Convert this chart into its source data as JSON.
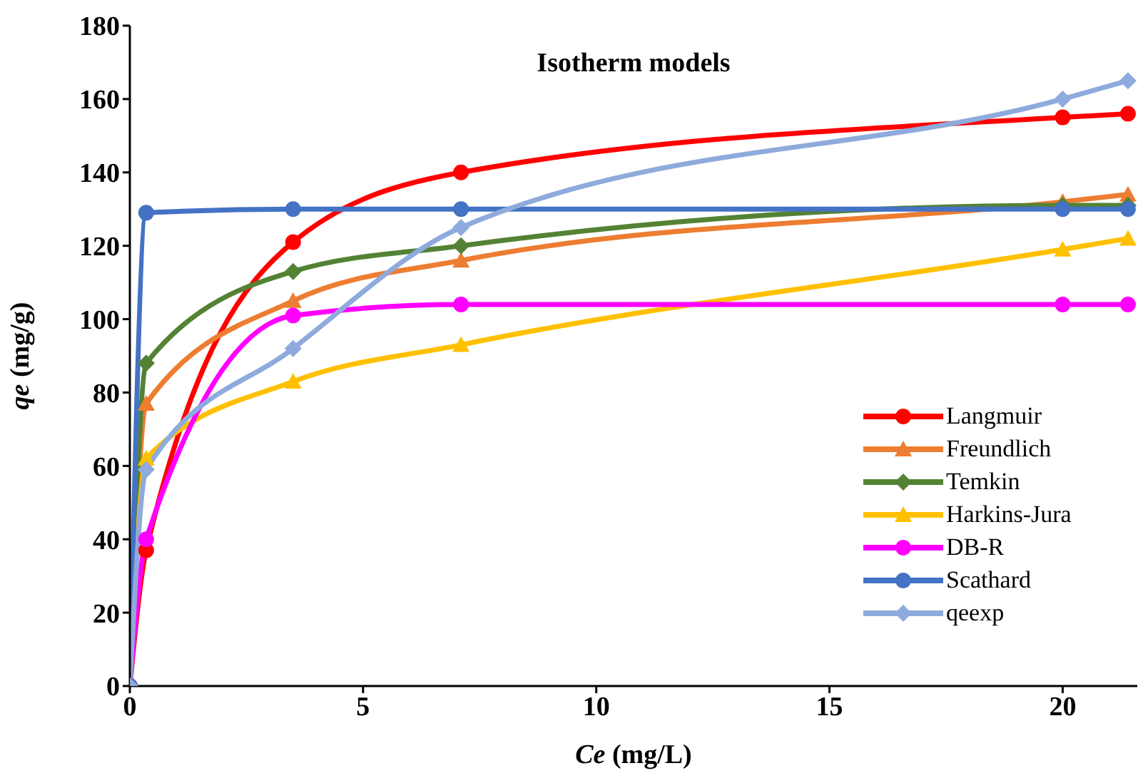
{
  "chart_data": {
    "type": "line",
    "title": "Isotherm models",
    "xlabel": "Ce (mg/L)",
    "ylabel": "qe (mg/g)",
    "x": [
      0,
      0.35,
      3.5,
      7.1,
      20,
      21.4
    ],
    "xlim": [
      0,
      21.6
    ],
    "xticks": [
      0,
      5,
      10,
      15,
      20
    ],
    "ylim": [
      0,
      180
    ],
    "yticks": [
      0,
      20,
      40,
      60,
      80,
      100,
      120,
      140,
      160,
      180
    ],
    "grid": false,
    "legend": "bottom right",
    "line_style": "solid",
    "series": [
      {
        "name": "Langmuir",
        "color": "#ff0000",
        "marker": "circle",
        "values": [
          0,
          37,
          121,
          140,
          155,
          156
        ]
      },
      {
        "name": "Freundlich",
        "color": "#ed7d31",
        "marker": "triangle",
        "values": [
          0,
          77,
          105,
          116,
          132,
          134
        ]
      },
      {
        "name": "Temkin",
        "color": "#548235",
        "marker": "diamond",
        "values": [
          0,
          88,
          113,
          120,
          131,
          131
        ]
      },
      {
        "name": "Harkins-Jura",
        "color": "#ffc000",
        "marker": "triangle",
        "values": [
          0,
          62,
          83,
          93,
          119,
          122
        ]
      },
      {
        "name": "DB-R",
        "color": "#ff00ff",
        "marker": "circle",
        "values": [
          0,
          40,
          101,
          104,
          104,
          104
        ]
      },
      {
        "name": "Scathard",
        "color": "#4472c4",
        "marker": "circle",
        "values": [
          0,
          129,
          130,
          130,
          130,
          130
        ]
      },
      {
        "name": "qeexp",
        "color": "#8faadc",
        "marker": "diamond",
        "values": [
          0,
          59,
          92,
          125,
          160,
          165
        ]
      }
    ]
  }
}
